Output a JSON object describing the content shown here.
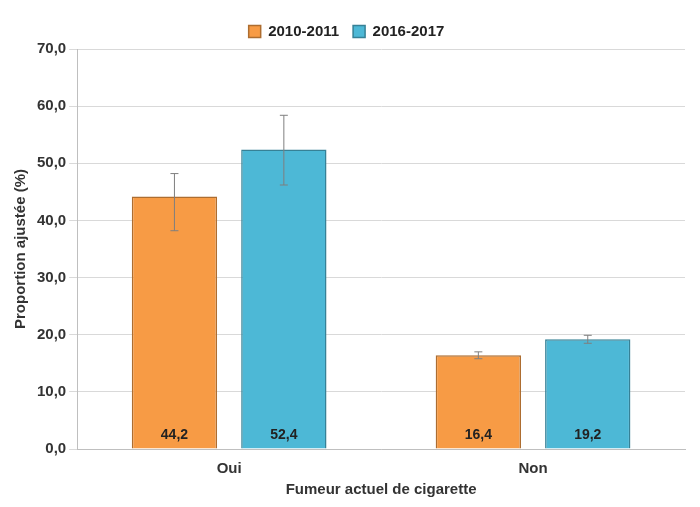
{
  "chart_data": {
    "type": "bar",
    "categories": [
      "Oui",
      "Non"
    ],
    "x_label": "Fumeur actuel de cigarette",
    "y_label": "Proportion ajustée (%)",
    "series": [
      {
        "name": "2010-2011",
        "color": "#f79b45",
        "values": [
          44.2,
          16.4
        ],
        "value_labels": [
          "44,2",
          "16,4"
        ],
        "error_low": [
          38.2,
          15.8
        ],
        "error_high": [
          48.2,
          17.0
        ]
      },
      {
        "name": "2016-2017",
        "color": "#4db8d6",
        "values": [
          52.4,
          19.2
        ],
        "value_labels": [
          "52,4",
          "19,2"
        ],
        "error_low": [
          46.2,
          18.5
        ],
        "error_high": [
          58.4,
          19.9
        ]
      }
    ],
    "ylim": [
      0,
      70
    ],
    "yticks": [
      {
        "value": 0,
        "label": "0,0"
      },
      {
        "value": 10,
        "label": "10,0"
      },
      {
        "value": 20,
        "label": "20,0"
      },
      {
        "value": 30,
        "label": "30,0"
      },
      {
        "value": 40,
        "label": "40,0"
      },
      {
        "value": 50,
        "label": "50,0"
      },
      {
        "value": 60,
        "label": "60,0"
      },
      {
        "value": 70,
        "label": "70,0"
      }
    ],
    "grid": true,
    "legend": "top",
    "data_labels": true
  }
}
